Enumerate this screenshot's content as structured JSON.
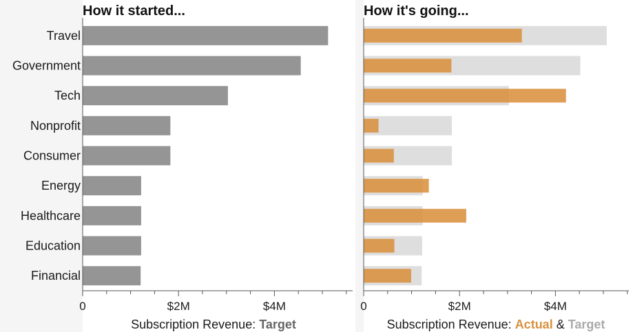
{
  "colors": {
    "target_left": "#959595",
    "target_right": "#dedede",
    "actual": "#d9913f",
    "axis": "#555555",
    "text": "#1a1a1a",
    "title": "#111111",
    "bg_band": "#f5f5f5"
  },
  "chart_data": [
    {
      "type": "bar",
      "orientation": "horizontal",
      "title": "How it started...",
      "categories": [
        "Travel",
        "Government",
        "Tech",
        "Nonprofit",
        "Consumer",
        "Energy",
        "Healthcare",
        "Education",
        "Financial"
      ],
      "series": [
        {
          "name": "Target",
          "values": [
            5.12,
            4.55,
            3.03,
            1.83,
            1.83,
            1.22,
            1.22,
            1.22,
            1.21
          ]
        }
      ],
      "xlim": [
        0,
        5.5
      ],
      "xticks": [
        0,
        2,
        4
      ],
      "xtick_labels": [
        "0",
        "$2M",
        "$4M"
      ],
      "xlabel_prefix": "Subscription Revenue: ",
      "xlabel_target": "Target",
      "grid": false
    },
    {
      "type": "bar",
      "orientation": "horizontal",
      "title": "How it's going...",
      "categories": [
        "Travel",
        "Government",
        "Tech",
        "Nonprofit",
        "Consumer",
        "Energy",
        "Healthcare",
        "Education",
        "Financial"
      ],
      "series": [
        {
          "name": "Target",
          "values": [
            5.07,
            4.52,
            3.03,
            1.84,
            1.84,
            1.23,
            1.23,
            1.22,
            1.21
          ]
        },
        {
          "name": "Actual",
          "values": [
            3.3,
            1.83,
            4.22,
            0.31,
            0.63,
            1.36,
            2.14,
            0.64,
            0.99
          ]
        }
      ],
      "xlim": [
        0,
        5.5
      ],
      "xticks": [
        0,
        2,
        4
      ],
      "xtick_labels": [
        "0",
        "$2M",
        "$4M"
      ],
      "xlabel_prefix": "Subscription Revenue: ",
      "xlabel_actual": "Actual",
      "xlabel_join": " & ",
      "xlabel_target": "Target",
      "grid": false
    }
  ]
}
